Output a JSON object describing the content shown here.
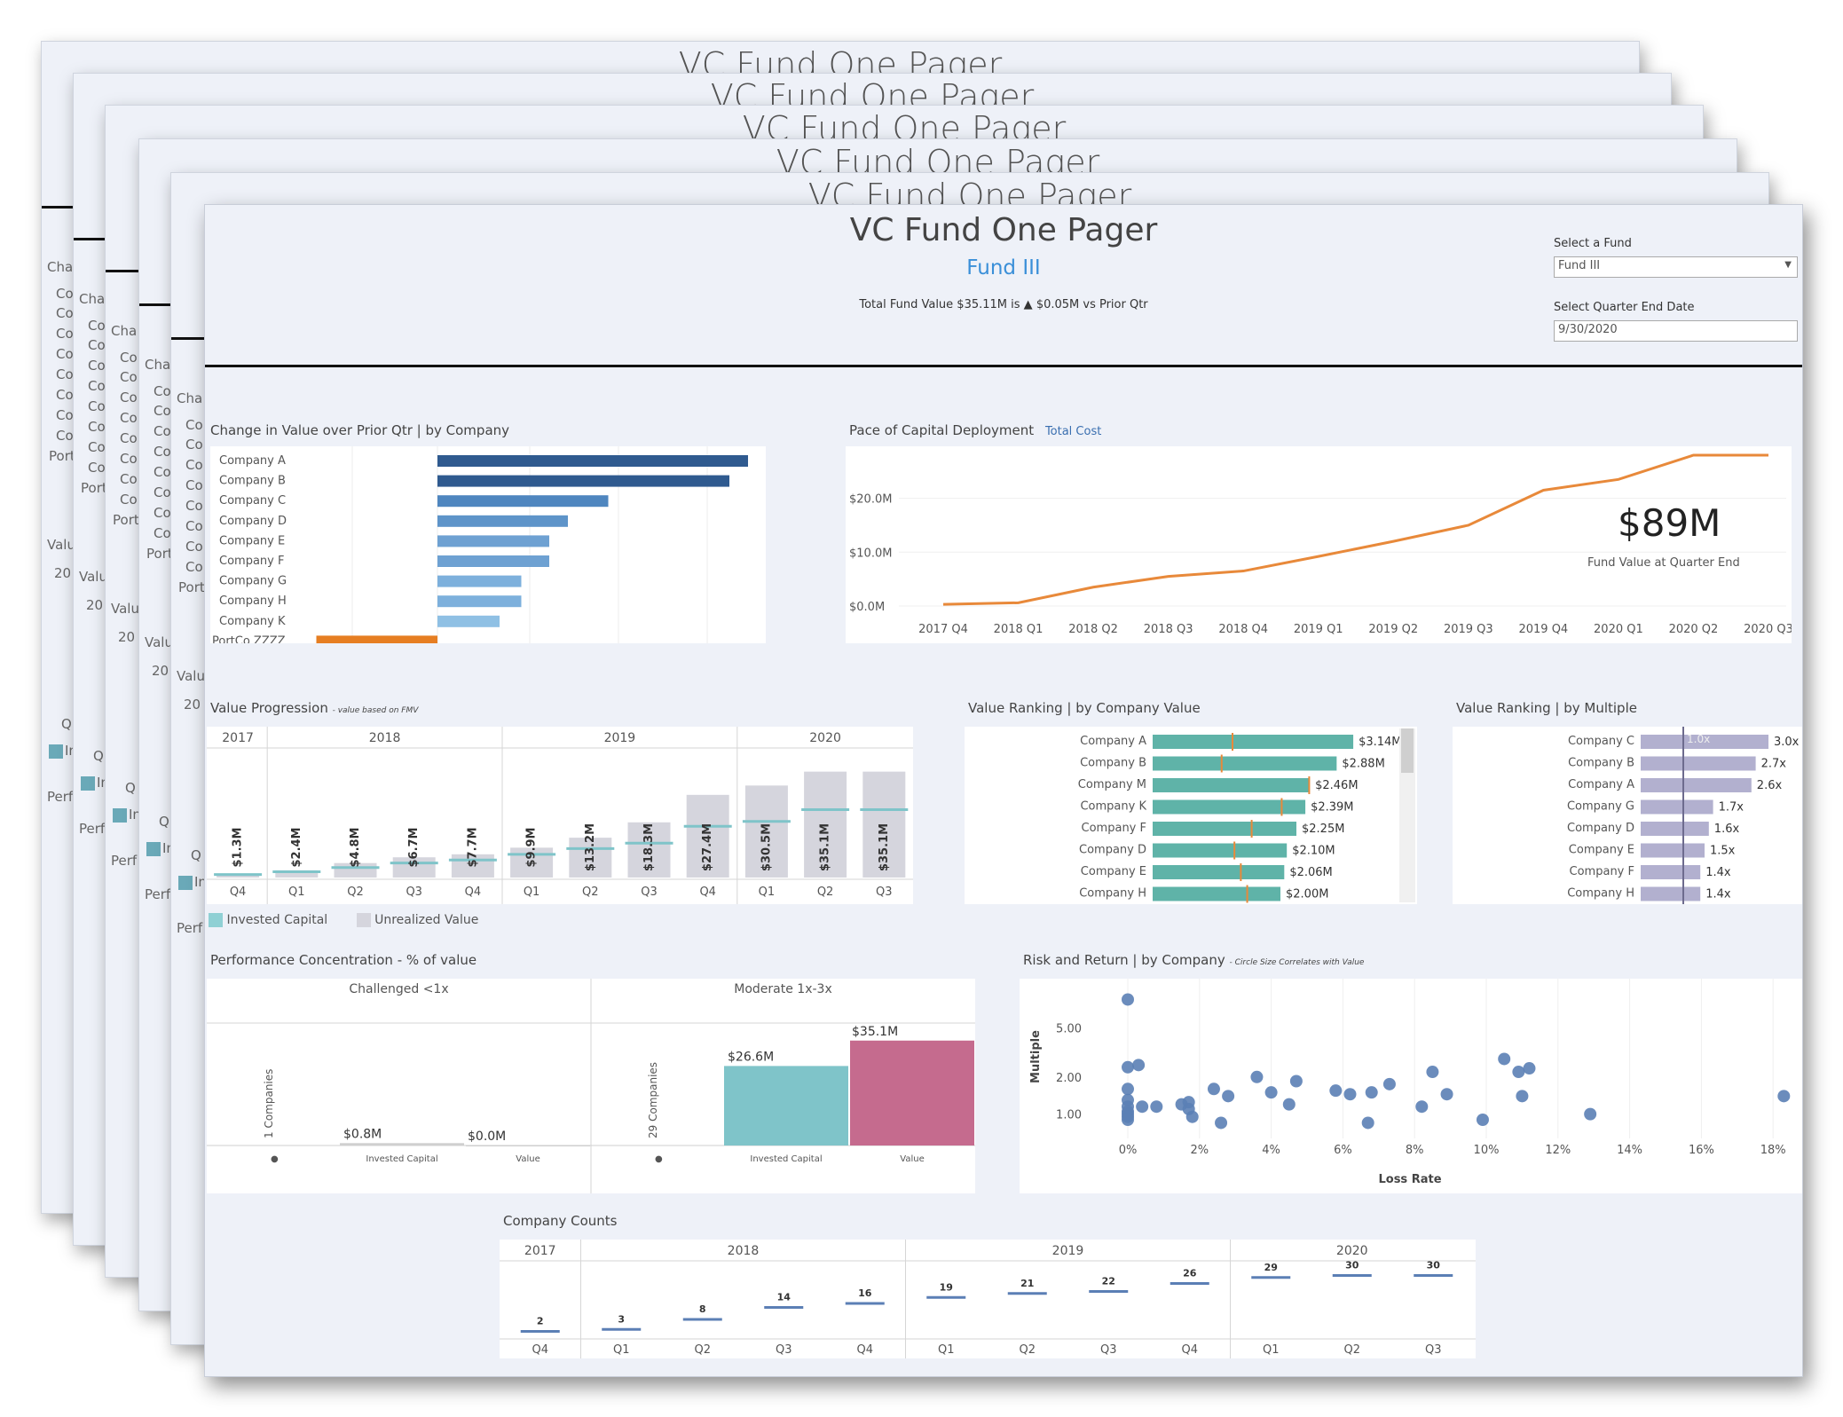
{
  "app": {
    "title": "VC Fund One Pager",
    "fund_name": "Fund III",
    "summary_prefix": "Total Fund Value $35.11M is",
    "summary_arrow": "▲",
    "summary_suffix": "$0.05M vs Prior Qtr",
    "fund_selector_label": "Select a Fund",
    "fund_selector_value": "Fund III",
    "date_selector_label": "Select Quarter End Date",
    "date_selector_value": "9/30/2020",
    "accent_color": "#3a8fd8"
  },
  "change_in_value": {
    "title": "Change in Value over Prior Qtr | by Company",
    "companies": [
      "Company A",
      "Company B",
      "Company C",
      "Company D",
      "Company E",
      "Company F",
      "Company G",
      "Company H",
      "Company K",
      "PortCo ZZZZ"
    ],
    "values": [
      1.0,
      0.94,
      0.55,
      0.42,
      0.36,
      0.36,
      0.27,
      0.27,
      0.2,
      -0.39
    ]
  },
  "pace": {
    "title": "Pace of Capital Deployment",
    "link": "Total Cost",
    "kpi_value": "$89M",
    "kpi_label": "Fund Value at Quarter End",
    "chart_data": {
      "type": "line",
      "x": [
        "2017 Q4",
        "2018 Q1",
        "2018 Q2",
        "2018 Q3",
        "2018 Q4",
        "2019 Q1",
        "2019 Q2",
        "2019 Q3",
        "2019 Q4",
        "2020 Q1",
        "2020 Q2",
        "2020 Q3"
      ],
      "y": [
        0.3,
        0.6,
        3.5,
        5.5,
        6.5,
        9.2,
        12,
        15,
        21.5,
        23.5,
        28,
        28
      ],
      "ylim": [
        0,
        28
      ],
      "yticks": [
        "$0.0M",
        "$10.0M",
        "$20.0M"
      ],
      "ytick_values": [
        0,
        10,
        20
      ]
    }
  },
  "value_progression": {
    "title": "Value Progression",
    "subtitle": "- value based on FMV",
    "years": [
      "2017",
      "2018",
      "2019",
      "2020"
    ],
    "quarters": [
      "Q4",
      "Q1",
      "Q2",
      "Q3",
      "Q4",
      "Q1",
      "Q2",
      "Q3",
      "Q4",
      "Q1",
      "Q2",
      "Q3"
    ],
    "labels": [
      "$1.3M",
      "$2.4M",
      "$4.8M",
      "$6.7M",
      "$7.7M",
      "$9.9M",
      "$13.2M",
      "$18.3M",
      "$27.4M",
      "$30.5M",
      "$35.1M",
      "$35.1M"
    ],
    "values": [
      1.3,
      2.4,
      4.8,
      6.7,
      7.7,
      9.9,
      13.2,
      18.3,
      27.4,
      30.5,
      35.1,
      35.1
    ],
    "invested": [
      1.0,
      1.9,
      3.3,
      4.8,
      5.8,
      7.7,
      9.6,
      11.4,
      17.0,
      18.6,
      22.5,
      22.5
    ],
    "legend_invested": "Invested Capital",
    "legend_unrealized": "Unrealized Value"
  },
  "ranking_value": {
    "title": "Value Ranking | by Company Value",
    "companies": [
      "Company A",
      "Company B",
      "Company M",
      "Company K",
      "Company F",
      "Company D",
      "Company E",
      "Company H"
    ],
    "labels": [
      "$3.14M",
      "$2.88M",
      "$2.46M",
      "$2.39M",
      "$2.25M",
      "$2.10M",
      "$2.06M",
      "$2.00M"
    ],
    "values": [
      3.14,
      2.88,
      2.46,
      2.39,
      2.25,
      2.1,
      2.06,
      2.0
    ],
    "markers": [
      1.25,
      1.08,
      2.45,
      2.02,
      1.55,
      1.28,
      1.38,
      1.48
    ]
  },
  "ranking_multiple": {
    "title": "Value Ranking | by Multiple",
    "companies": [
      "Company C",
      "Company B",
      "Company A",
      "Company G",
      "Company D",
      "Company E",
      "Company F",
      "Company H"
    ],
    "labels": [
      "3.0x",
      "2.7x",
      "2.6x",
      "1.7x",
      "1.6x",
      "1.5x",
      "1.4x",
      "1.4x"
    ],
    "values": [
      3.0,
      2.7,
      2.6,
      1.7,
      1.6,
      1.5,
      1.4,
      1.4
    ],
    "ref_label": "1.0x"
  },
  "concentration": {
    "title": "Performance Concentration - % of value",
    "groups": [
      {
        "name": "Challenged <1x",
        "companies": "1 Companies",
        "invested_label": "$0.8M",
        "value_label": "$0.0M",
        "invested": 0.8,
        "value": 0.0
      },
      {
        "name": "Moderate 1x-3x",
        "companies": "29 Companies",
        "invested_label": "$26.6M",
        "value_label": "$35.1M",
        "invested": 26.6,
        "value": 35.1
      }
    ],
    "axis_invested": "Invested Capital",
    "axis_value": "Value",
    "color_invested": "#7fc4c9",
    "color_value": "#c56b8e"
  },
  "risk_return": {
    "title": "Risk and Return | by Company",
    "subtitle": "- Circle Size Correlates with Value",
    "xlabel": "Loss Rate",
    "ylabel": "Multiple",
    "xticks": [
      "0%",
      "2%",
      "4%",
      "6%",
      "8%",
      "10%",
      "12%",
      "14%",
      "16%",
      "18%"
    ],
    "yticks": [
      "1.00",
      "2.00",
      "5.00"
    ],
    "chart_data": {
      "type": "scatter",
      "points": [
        [
          0,
          8.5
        ],
        [
          0,
          2.4
        ],
        [
          0.3,
          2.5
        ],
        [
          0,
          1.6
        ],
        [
          0,
          1.3
        ],
        [
          0,
          1.15
        ],
        [
          0,
          1.05
        ],
        [
          0,
          1.0
        ],
        [
          0,
          0.95
        ],
        [
          0,
          0.9
        ],
        [
          0.4,
          1.15
        ],
        [
          0.8,
          1.15
        ],
        [
          1.5,
          1.2
        ],
        [
          1.7,
          1.1
        ],
        [
          1.8,
          0.95
        ],
        [
          1.7,
          1.25
        ],
        [
          2.4,
          1.6
        ],
        [
          2.6,
          0.85
        ],
        [
          2.8,
          1.4
        ],
        [
          3.6,
          2.0
        ],
        [
          4,
          1.5
        ],
        [
          4.5,
          1.2
        ],
        [
          4.7,
          1.85
        ],
        [
          5.8,
          1.55
        ],
        [
          6.2,
          1.45
        ],
        [
          6.8,
          1.5
        ],
        [
          6.7,
          0.85
        ],
        [
          7.3,
          1.75
        ],
        [
          8.2,
          1.15
        ],
        [
          8.5,
          2.2
        ],
        [
          8.9,
          1.45
        ],
        [
          9.9,
          0.9
        ],
        [
          10.5,
          2.8
        ],
        [
          10.9,
          2.2
        ],
        [
          11.2,
          2.35
        ],
        [
          11,
          1.4
        ],
        [
          12.9,
          1.0
        ],
        [
          18.3,
          1.4
        ]
      ]
    }
  },
  "company_counts": {
    "title": "Company Counts",
    "years": [
      "2017",
      "2018",
      "2019",
      "2020"
    ],
    "quarters": [
      "Q4",
      "Q1",
      "Q2",
      "Q3",
      "Q4",
      "Q1",
      "Q2",
      "Q3",
      "Q4",
      "Q1",
      "Q2",
      "Q3"
    ],
    "values": [
      2,
      3,
      8,
      14,
      16,
      19,
      21,
      22,
      26,
      29,
      30,
      30
    ]
  },
  "ghost": {
    "title": "VC Fund One Pager",
    "snippet_cha": "Cha",
    "snippet_co": "Co",
    "snippet_port": "Port",
    "snippet_valu": "Valu",
    "snippet_year": "20",
    "snippet_q": "Q",
    "snippet_in": "In",
    "snippet_perf": "Perf"
  }
}
